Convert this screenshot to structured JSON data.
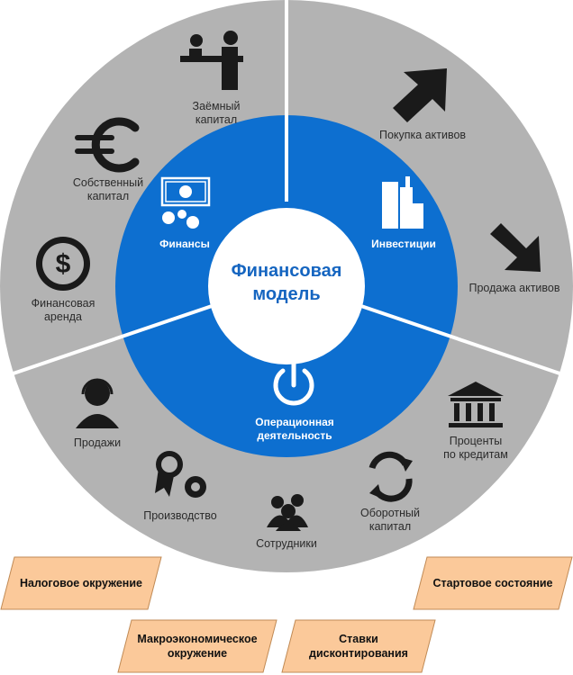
{
  "center": {
    "title": "Финансовая\nмодель"
  },
  "segments": {
    "finance": "Финансы",
    "investments": "Инвестиции",
    "operations": "Операционная\nдеятельность"
  },
  "outer": {
    "loan_capital": "Заёмный\nкапитал",
    "equity": "Собственный\nкапитал",
    "leasing": "Финансовая\nаренда",
    "asset_purchase": "Покупка активов",
    "asset_sale": "Продажа активов",
    "interest": "Проценты\nпо кредитам",
    "working_capital": "Оборотный\nкапитал",
    "staff": "Сотрудники",
    "production": "Производство",
    "sales": "Продажи"
  },
  "bottom": {
    "tax": "Налоговое окружение",
    "start_state": "Стартовое состояние",
    "macro": "Макроэкономическое\nокружение",
    "discount": "Ставки\nдисконтирования"
  },
  "colors": {
    "outer_ring": "#b3b3b3",
    "middle_ring": "#0d6fd0",
    "center": "#ffffff",
    "divider": "#ffffff",
    "box_fill": "#fbc99a",
    "box_stroke": "#c08a55",
    "icon": "#1a1a1a"
  }
}
